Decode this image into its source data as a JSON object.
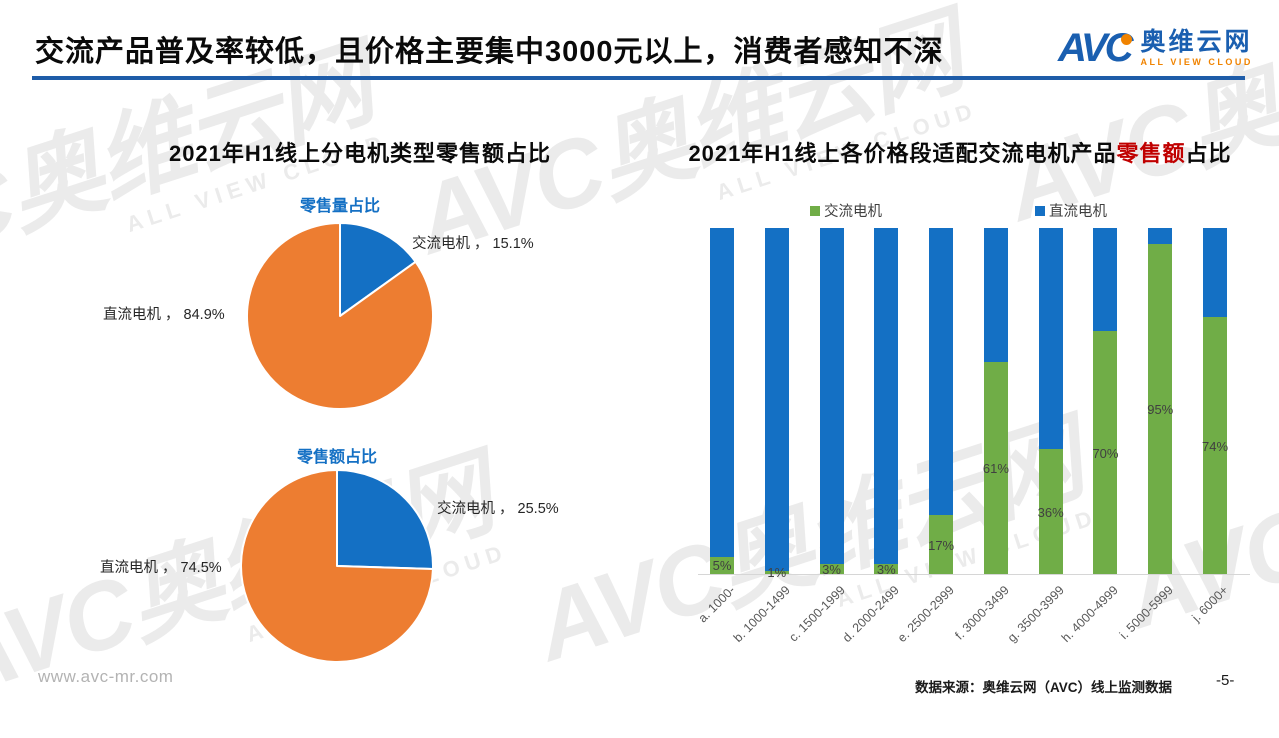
{
  "header": {
    "title": "交流产品普及率较低，且价格主要集中3000元以上，消费者感知不深",
    "logo": {
      "brand": "AVC",
      "name": "奥维云网",
      "tagline": "ALL VIEW CLOUD"
    }
  },
  "watermark": {
    "main": "AVC奥维云网",
    "sub": "ALL VIEW CLOUD"
  },
  "left_panel": {
    "title": "2021年H1线上分电机类型零售额占比",
    "pie1": {
      "subtitle": "零售量占比",
      "ac_label": "交流电机 ， 15.1%",
      "dc_label": "直流电机 ， 84.9%"
    },
    "pie2": {
      "subtitle": "零售额占比",
      "ac_label": "交流电机 ， 25.5%",
      "dc_label": "直流电机 ， 74.5%"
    }
  },
  "right_panel": {
    "title_prefix": "2021年H1线上各价格段适配交流电机产品",
    "title_highlight": "零售额",
    "title_suffix": "占比",
    "legend": [
      {
        "label": "交流电机",
        "color": "#70AD47"
      },
      {
        "label": "直流电机",
        "color": "#1470C4"
      }
    ]
  },
  "footer": {
    "website": "www.avc-mr.com",
    "source": "数据来源：奥维云网（AVC）线上监测数据",
    "page": "-5-"
  },
  "colors": {
    "accent_blue": "#1470C4",
    "orange": "#ED7D31",
    "green": "#70AD47",
    "rule_blue": "#1E5CA8",
    "highlight_red": "#C00000"
  },
  "chart_data": [
    {
      "type": "pie",
      "title": "零售量占比",
      "parent_title": "2021年H1线上分电机类型零售额占比",
      "labels": [
        "交流电机",
        "直流电机"
      ],
      "values": [
        15.1,
        84.9
      ],
      "colors": [
        "#1470C4",
        "#ED7D31"
      ],
      "start_angle_deg": 0,
      "direction": "clockwise"
    },
    {
      "type": "pie",
      "title": "零售额占比",
      "parent_title": "2021年H1线上分电机类型零售额占比",
      "labels": [
        "交流电机",
        "直流电机"
      ],
      "values": [
        25.5,
        74.5
      ],
      "colors": [
        "#1470C4",
        "#ED7D31"
      ],
      "start_angle_deg": 0,
      "direction": "clockwise"
    },
    {
      "type": "bar",
      "subtype": "stacked-100pct",
      "title": "2021年H1线上各价格段适配交流电机产品零售额占比",
      "title_highlight": "零售额",
      "categories": [
        "a. 1000-",
        "b. 1000-1499",
        "c. 1500-1999",
        "d. 2000-2499",
        "e. 2500-2999",
        "f. 3000-3499",
        "g. 3500-3999",
        "h. 4000-4999",
        "i. 5000-5999",
        "j. 6000+"
      ],
      "series": [
        {
          "name": "交流电机",
          "color": "#70AD47",
          "values": [
            5,
            1,
            3,
            3,
            17,
            61,
            36,
            70,
            95,
            74
          ]
        },
        {
          "name": "直流电机",
          "color": "#1470C4",
          "values": [
            95,
            99,
            97,
            97,
            83,
            39,
            64,
            30,
            5,
            26
          ]
        }
      ],
      "data_labels": [
        "5%",
        "1%",
        "3%",
        "3%",
        "17%",
        "61%",
        "36%",
        "70%",
        "95%",
        "74%"
      ],
      "ylim": [
        0,
        100
      ],
      "grid": false,
      "legend_position": "top",
      "xlabel": "",
      "ylabel": ""
    }
  ]
}
